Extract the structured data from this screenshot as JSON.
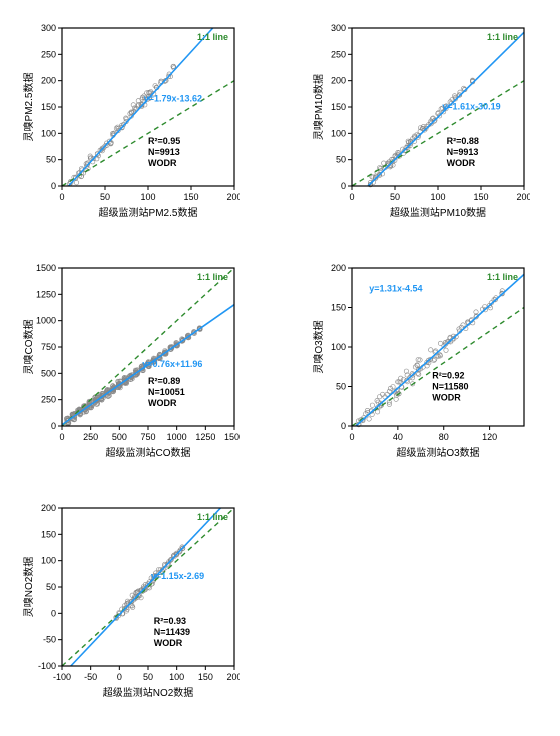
{
  "figure_background": "#ffffff",
  "legend_label": "1:1 line",
  "legend_color": "#2e8b2e",
  "fit_line_color": "#2196f3",
  "ref_line_color": "#2e8b2e",
  "scatter_stroke": "#888888",
  "scatter_fill": "none",
  "axis_color": "#000000",
  "tick_font_size": 9,
  "label_font_size": 10,
  "stats_font_size": 9,
  "stats_font_weight": "bold",
  "marker_radius": 2.2,
  "charts": [
    {
      "id": "pm25",
      "row": 0,
      "col": 0,
      "ylabel": "灵嗅PM2.5数据",
      "xlabel": "超级监测站PM2.5数据",
      "xlim": [
        0,
        200
      ],
      "ylim": [
        0,
        300
      ],
      "xticks": [
        0,
        50,
        100,
        150,
        200
      ],
      "yticks": [
        0,
        50,
        100,
        150,
        200,
        250,
        300
      ],
      "fit_slope": 1.79,
      "fit_intercept": -13.62,
      "eq": "y=1.79x-13.62",
      "r2": "R²=0.95",
      "n": "N=9913",
      "wodr": "WODR",
      "eq_pos": [
        95,
        160
      ],
      "stats_pos": [
        100,
        80
      ],
      "cloud": [
        [
          10,
          5,
          8
        ],
        [
          15,
          12,
          12
        ],
        [
          20,
          20,
          15
        ],
        [
          25,
          28,
          14
        ],
        [
          30,
          40,
          15
        ],
        [
          35,
          50,
          14
        ],
        [
          40,
          58,
          13
        ],
        [
          45,
          68,
          12
        ],
        [
          50,
          78,
          12
        ],
        [
          55,
          85,
          11
        ],
        [
          60,
          95,
          11
        ],
        [
          65,
          108,
          12
        ],
        [
          70,
          115,
          11
        ],
        [
          75,
          125,
          10
        ],
        [
          80,
          138,
          11
        ],
        [
          85,
          148,
          14
        ],
        [
          90,
          155,
          15
        ],
        [
          95,
          160,
          17
        ],
        [
          98,
          172,
          18
        ],
        [
          100,
          170,
          10
        ],
        [
          105,
          178,
          9
        ],
        [
          110,
          190,
          9
        ],
        [
          115,
          195,
          8
        ],
        [
          120,
          200,
          7
        ],
        [
          125,
          210,
          6
        ],
        [
          130,
          225,
          5
        ]
      ]
    },
    {
      "id": "pm10",
      "row": 0,
      "col": 1,
      "ylabel": "灵嗅PM10数据",
      "xlabel": "超级监测站PM10数据",
      "xlim": [
        0,
        200
      ],
      "ylim": [
        0,
        300
      ],
      "xticks": [
        0,
        50,
        100,
        150,
        200
      ],
      "yticks": [
        0,
        50,
        100,
        150,
        200,
        250,
        300
      ],
      "fit_slope": 1.61,
      "fit_intercept": -30.19,
      "eq": "y=1.61x-30.19",
      "r2": "R²=0.88",
      "n": "N=9913",
      "wodr": "WODR",
      "eq_pos": [
        105,
        145
      ],
      "stats_pos": [
        110,
        80
      ],
      "cloud": [
        [
          20,
          3,
          8
        ],
        [
          25,
          12,
          11
        ],
        [
          30,
          20,
          14
        ],
        [
          35,
          28,
          16
        ],
        [
          40,
          38,
          18
        ],
        [
          45,
          45,
          18
        ],
        [
          50,
          52,
          17
        ],
        [
          55,
          60,
          16
        ],
        [
          60,
          68,
          15
        ],
        [
          65,
          78,
          15
        ],
        [
          70,
          85,
          14
        ],
        [
          75,
          95,
          14
        ],
        [
          80,
          105,
          13
        ],
        [
          85,
          112,
          13
        ],
        [
          90,
          120,
          12
        ],
        [
          95,
          128,
          11
        ],
        [
          100,
          135,
          10
        ],
        [
          105,
          145,
          10
        ],
        [
          110,
          150,
          9
        ],
        [
          115,
          160,
          8
        ],
        [
          120,
          168,
          8
        ],
        [
          125,
          175,
          7
        ],
        [
          130,
          185,
          6
        ],
        [
          140,
          200,
          5
        ]
      ]
    },
    {
      "id": "co",
      "row": 1,
      "col": 0,
      "ylabel": "灵嗅CO数据",
      "xlabel": "超级监测站CO数据",
      "xlim": [
        0,
        1500
      ],
      "ylim": [
        0,
        1500
      ],
      "xticks": [
        0,
        250,
        500,
        750,
        1000,
        1250,
        1500
      ],
      "yticks": [
        0,
        250,
        500,
        750,
        1000,
        1250,
        1500
      ],
      "fit_slope": 0.76,
      "fit_intercept": 11.96,
      "eq": "y=0.76x+11.96",
      "r2": "R²=0.89",
      "n": "N=10051",
      "wodr": "WODR",
      "eq_pos": [
        700,
        560
      ],
      "stats_pos": [
        750,
        400
      ],
      "cloud": [
        [
          50,
          50,
          50
        ],
        [
          100,
          90,
          60
        ],
        [
          150,
          130,
          65
        ],
        [
          200,
          165,
          70
        ],
        [
          250,
          200,
          70
        ],
        [
          300,
          240,
          70
        ],
        [
          350,
          280,
          70
        ],
        [
          400,
          315,
          68
        ],
        [
          450,
          355,
          65
        ],
        [
          500,
          395,
          65
        ],
        [
          550,
          430,
          60
        ],
        [
          600,
          470,
          58
        ],
        [
          650,
          510,
          55
        ],
        [
          700,
          550,
          52
        ],
        [
          750,
          585,
          48
        ],
        [
          800,
          625,
          45
        ],
        [
          850,
          660,
          42
        ],
        [
          900,
          700,
          40
        ],
        [
          950,
          740,
          35
        ],
        [
          1000,
          775,
          32
        ],
        [
          1050,
          815,
          28
        ],
        [
          1100,
          850,
          25
        ],
        [
          1150,
          890,
          22
        ],
        [
          1200,
          925,
          20
        ]
      ]
    },
    {
      "id": "o3",
      "row": 1,
      "col": 1,
      "ylabel": "灵嗅O3数据",
      "xlabel": "超级监测站O3数据",
      "xlim": [
        0,
        150
      ],
      "ylim": [
        0,
        200
      ],
      "xticks": [
        0,
        40,
        80,
        120
      ],
      "yticks": [
        0,
        50,
        100,
        150,
        200
      ],
      "fit_slope": 1.31,
      "fit_intercept": -4.54,
      "eq": "y=1.31x-4.54",
      "r2": "R²=0.92",
      "n": "N=11580",
      "wodr": "WODR",
      "eq_pos": [
        15,
        170
      ],
      "stats_pos": [
        70,
        60
      ],
      "cloud": [
        [
          5,
          3,
          8
        ],
        [
          10,
          10,
          12
        ],
        [
          15,
          16,
          15
        ],
        [
          20,
          22,
          17
        ],
        [
          25,
          30,
          18
        ],
        [
          30,
          36,
          19
        ],
        [
          35,
          43,
          19
        ],
        [
          40,
          50,
          19
        ],
        [
          45,
          56,
          18
        ],
        [
          50,
          62,
          18
        ],
        [
          55,
          70,
          17
        ],
        [
          60,
          76,
          16
        ],
        [
          65,
          82,
          16
        ],
        [
          70,
          90,
          15
        ],
        [
          75,
          95,
          15
        ],
        [
          80,
          102,
          14
        ],
        [
          85,
          108,
          14
        ],
        [
          90,
          115,
          13
        ],
        [
          95,
          122,
          12
        ],
        [
          100,
          128,
          11
        ],
        [
          105,
          135,
          10
        ],
        [
          110,
          140,
          10
        ],
        [
          115,
          148,
          9
        ],
        [
          120,
          153,
          8
        ],
        [
          125,
          160,
          7
        ],
        [
          130,
          168,
          6
        ]
      ]
    },
    {
      "id": "no2",
      "row": 2,
      "col": 0,
      "ylabel": "灵嗅NO2数据",
      "xlabel": "超级监测站NO2数据",
      "xlim": [
        -100,
        200
      ],
      "ylim": [
        -100,
        200
      ],
      "xticks": [
        -100,
        -50,
        0,
        50,
        100,
        150,
        200
      ],
      "yticks": [
        -100,
        -50,
        0,
        50,
        100,
        150,
        200
      ],
      "fit_slope": 1.15,
      "fit_intercept": -2.69,
      "eq": "y=1.15x-2.69",
      "r2": "R²=0.93",
      "n": "N=11439",
      "wodr": "WODR",
      "eq_pos": [
        55,
        65
      ],
      "stats_pos": [
        60,
        -20
      ],
      "cloud": [
        [
          -5,
          -8,
          6
        ],
        [
          0,
          -2,
          8
        ],
        [
          5,
          3,
          10
        ],
        [
          10,
          9,
          14
        ],
        [
          15,
          15,
          16
        ],
        [
          20,
          20,
          18
        ],
        [
          25,
          26,
          18
        ],
        [
          30,
          32,
          18
        ],
        [
          35,
          38,
          17
        ],
        [
          40,
          43,
          16
        ],
        [
          45,
          50,
          15
        ],
        [
          50,
          55,
          14
        ],
        [
          55,
          61,
          13
        ],
        [
          60,
          67,
          12
        ],
        [
          65,
          72,
          11
        ],
        [
          70,
          78,
          10
        ],
        [
          75,
          84,
          9
        ],
        [
          80,
          90,
          8
        ],
        [
          85,
          95,
          7
        ],
        [
          90,
          102,
          6
        ],
        [
          95,
          108,
          6
        ],
        [
          100,
          112,
          5
        ],
        [
          105,
          118,
          5
        ],
        [
          110,
          125,
          4
        ]
      ]
    }
  ]
}
